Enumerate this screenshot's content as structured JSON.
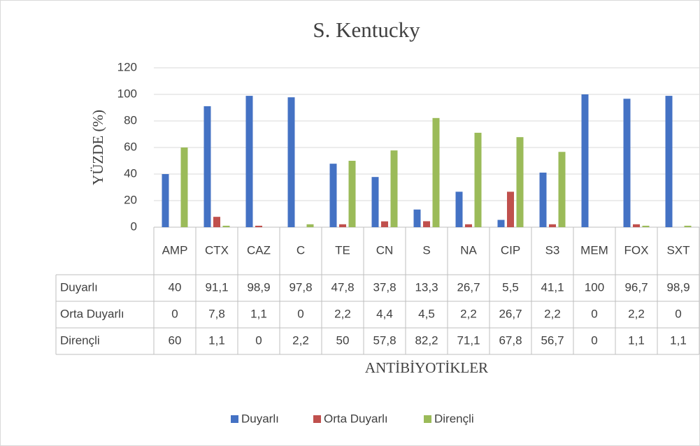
{
  "chart_data": {
    "type": "bar",
    "title": "S. Kentucky",
    "y_label": "YÜZDE (%)",
    "x_label": "ANTİBİYOTİKLER",
    "categories": [
      "AMP",
      "CTX",
      "CAZ",
      "C",
      "TE",
      "CN",
      "S",
      "NA",
      "CIP",
      "S3",
      "MEM",
      "FOX",
      "SXT"
    ],
    "series": [
      {
        "name": "Duyarlı",
        "color": "#4472c4",
        "values": [
          40,
          91.1,
          98.9,
          97.8,
          47.8,
          37.8,
          13.3,
          26.7,
          5.5,
          41.1,
          100,
          96.7,
          98.9
        ],
        "value_labels": [
          "40",
          "91,1",
          "98,9",
          "97,8",
          "47,8",
          "37,8",
          "13,3",
          "26,7",
          "5,5",
          "41,1",
          "100",
          "96,7",
          "98,9"
        ]
      },
      {
        "name": "Orta Duyarlı",
        "color": "#c0504d",
        "values": [
          0,
          7.8,
          1.1,
          0,
          2.2,
          4.4,
          4.5,
          2.2,
          26.7,
          2.2,
          0,
          2.2,
          0
        ],
        "value_labels": [
          "0",
          "7,8",
          "1,1",
          "0",
          "2,2",
          "4,4",
          "4,5",
          "2,2",
          "26,7",
          "2,2",
          "0",
          "2,2",
          "0"
        ]
      },
      {
        "name": "Dirençli",
        "color": "#9bbb59",
        "values": [
          60,
          1.1,
          0,
          2.2,
          50,
          57.8,
          82.2,
          71.1,
          67.8,
          56.7,
          0,
          1.1,
          1.1
        ],
        "value_labels": [
          "60",
          "1,1",
          "0",
          "2,2",
          "50",
          "57,8",
          "82,2",
          "71,1",
          "67,8",
          "56,7",
          "0",
          "1,1",
          "1,1"
        ]
      }
    ],
    "ylim": [
      0,
      120
    ],
    "yticks": [
      0,
      20,
      40,
      60,
      80,
      100,
      120
    ],
    "grid": true,
    "legend": "bottom"
  }
}
